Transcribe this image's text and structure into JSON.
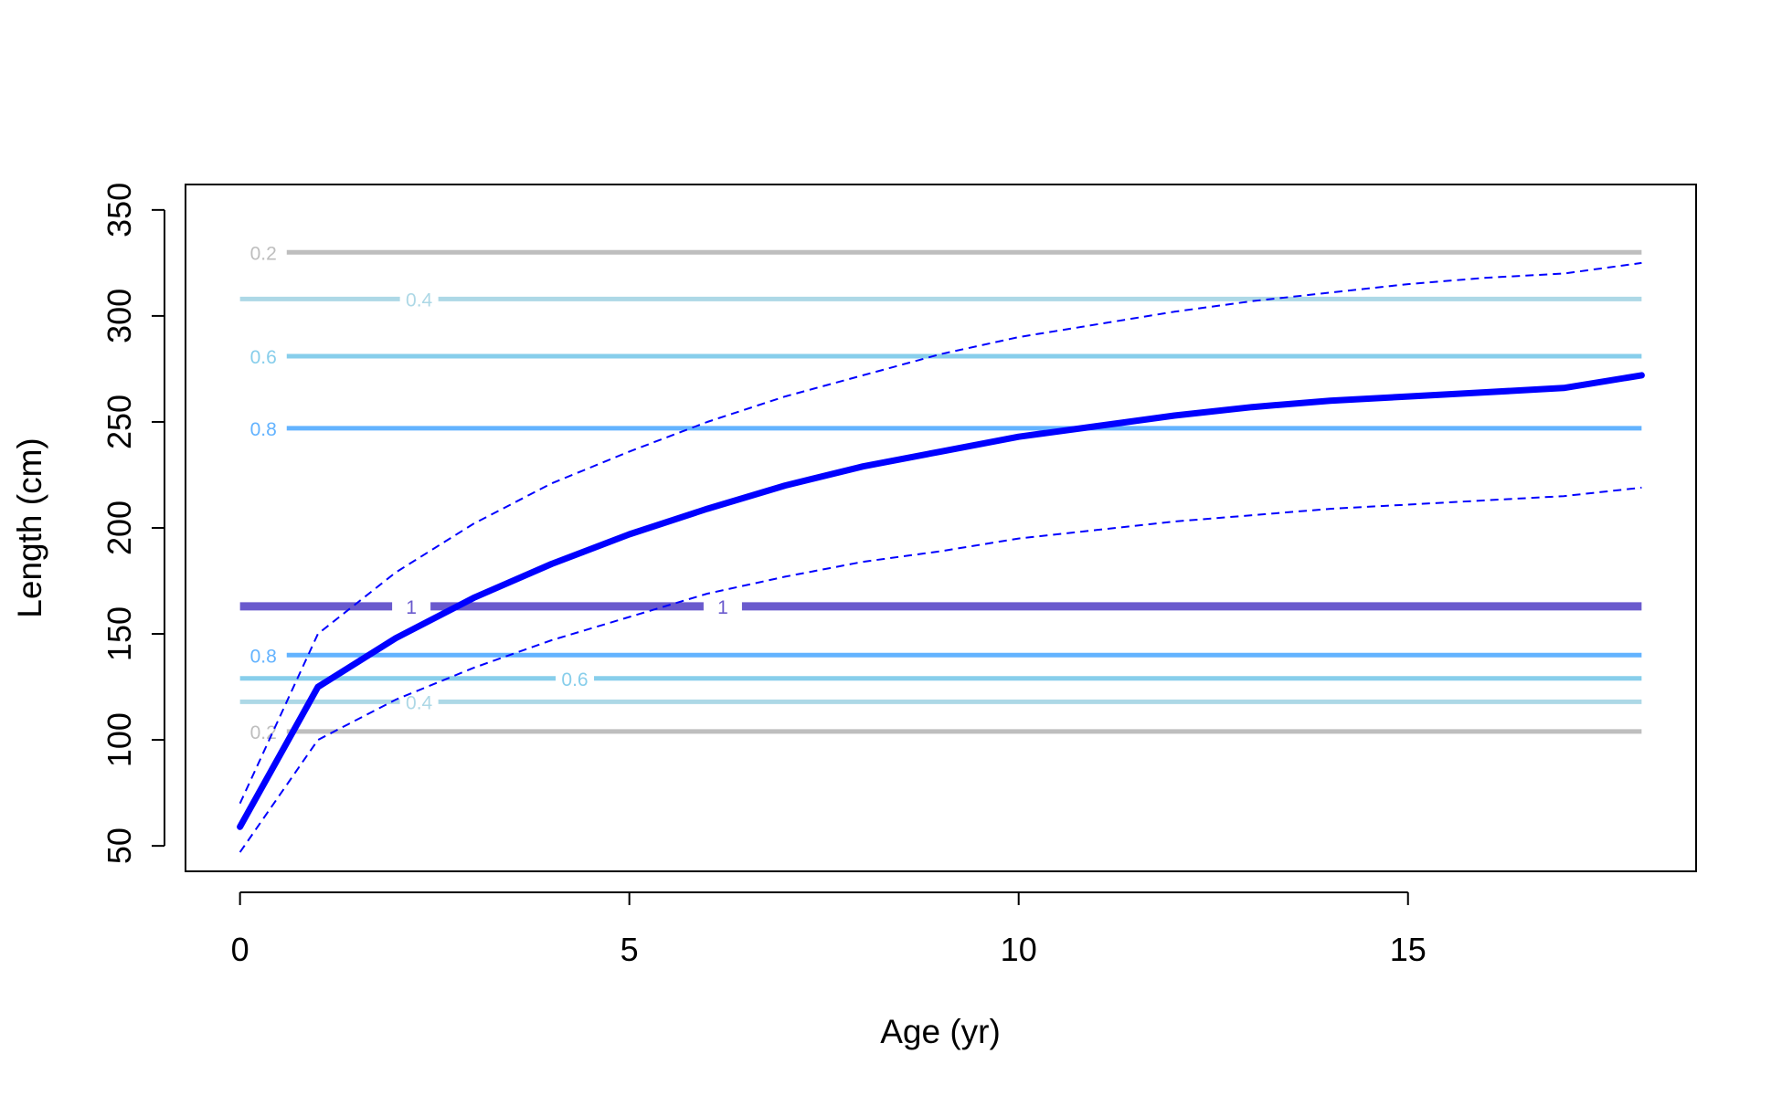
{
  "chart_data": {
    "type": "line",
    "title": "",
    "xlabel": "Age (yr)",
    "ylabel": "Length (cm)",
    "xlim": [
      -0.7,
      18.7
    ],
    "ylim": [
      38,
      362
    ],
    "x_ticks": [
      "0",
      "5",
      "10",
      "15"
    ],
    "y_ticks": [
      "50",
      "100",
      "150",
      "200",
      "250",
      "300",
      "350"
    ],
    "grid": false,
    "legend": "none",
    "series": [
      {
        "style": "solid-thick",
        "color": "#0000FF",
        "x": [
          0,
          1,
          2,
          3,
          4,
          5,
          6,
          7,
          8,
          9,
          10,
          11,
          12,
          13,
          14,
          15,
          16,
          17,
          18
        ],
        "y": [
          59,
          125,
          148,
          167,
          183,
          197,
          209,
          220,
          229,
          236,
          243,
          248,
          253,
          257,
          260,
          262,
          264,
          266,
          272
        ]
      },
      {
        "style": "dashed",
        "color": "#0000FF",
        "x": [
          0,
          1,
          2,
          3,
          4,
          5,
          6,
          7,
          8,
          9,
          10,
          11,
          12,
          13,
          14,
          15,
          16,
          17,
          18
        ],
        "y": [
          70,
          150,
          179,
          202,
          221,
          236,
          250,
          262,
          272,
          282,
          290,
          296,
          302,
          307,
          311,
          315,
          318,
          320,
          325
        ]
      },
      {
        "style": "dashed",
        "color": "#0000FF",
        "x": [
          0,
          1,
          2,
          3,
          4,
          5,
          6,
          7,
          8,
          9,
          10,
          11,
          12,
          13,
          14,
          15,
          16,
          17,
          18
        ],
        "y": [
          47,
          100,
          119,
          134,
          147,
          158,
          169,
          177,
          184,
          189,
          195,
          199,
          203,
          206,
          209,
          211,
          213,
          215,
          219
        ]
      }
    ],
    "contour_lines": [
      {
        "label": "0.2",
        "y": 330,
        "color": "#BEBEBE",
        "label_x": 0.3
      },
      {
        "label": "0.4",
        "y": 308,
        "color": "#ADD8E6",
        "label_x": 2.3
      },
      {
        "label": "0.6",
        "y": 281,
        "color": "#87CEEB",
        "label_x": 0.3
      },
      {
        "label": "0.8",
        "y": 247,
        "color": "#63B3FF",
        "label_x": 0.3
      },
      {
        "label": "1",
        "y": 163,
        "color": "#6A5ACD",
        "label_x": 2.2,
        "thick": true
      },
      {
        "label": "1",
        "y": 163,
        "color": "#6A5ACD",
        "label_x": 6.2,
        "thick": true
      },
      {
        "label": "0.8",
        "y": 140,
        "color": "#63B3FF",
        "label_x": 0.3
      },
      {
        "label": "0.6",
        "y": 129,
        "color": "#87CEEB",
        "label_x": 4.3
      },
      {
        "label": "0.4",
        "y": 118,
        "color": "#ADD8E6",
        "label_x": 2.3
      },
      {
        "label": "0.2",
        "y": 104,
        "color": "#BEBEBE",
        "label_x": 0.3
      }
    ]
  }
}
